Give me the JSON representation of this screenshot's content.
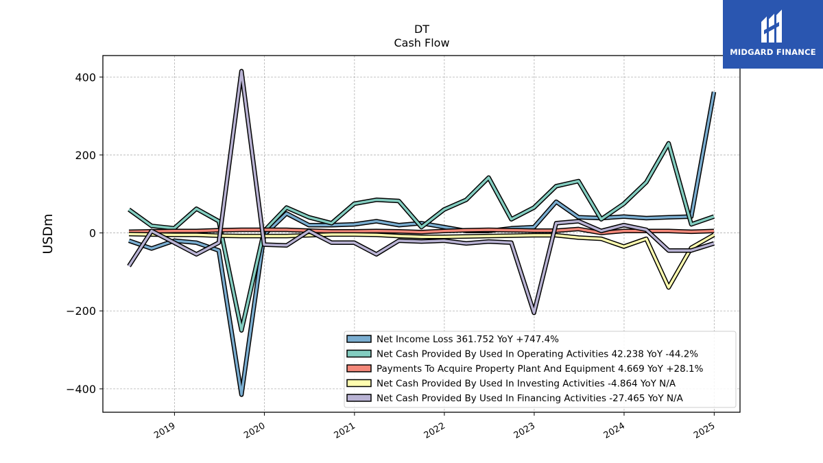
{
  "chart_data": {
    "type": "line",
    "title": "DT",
    "subtitle": "Cash Flow",
    "ylabel": "USDm",
    "xlabel": "",
    "ylim": [
      -460,
      455
    ],
    "yticks": [
      400,
      200,
      0,
      -200,
      -400
    ],
    "ytick_labels": [
      "400",
      "200",
      "0",
      "−200",
      "−400"
    ],
    "xtick_labels": [
      "2019",
      "2020",
      "2021",
      "2022",
      "2023",
      "2024",
      "2025"
    ],
    "grid": true,
    "legend_position": "lower-right",
    "x": [
      "2018-06-30",
      "2018-09-30",
      "2018-12-31",
      "2019-03-31",
      "2019-06-30",
      "2019-09-30",
      "2019-12-31",
      "2020-03-31",
      "2020-06-30",
      "2020-09-30",
      "2020-12-31",
      "2021-03-31",
      "2021-06-30",
      "2021-09-30",
      "2021-12-31",
      "2022-03-31",
      "2022-06-30",
      "2022-09-30",
      "2022-12-31",
      "2023-03-31",
      "2023-06-30",
      "2023-09-30",
      "2023-12-31",
      "2024-03-31",
      "2024-06-30",
      "2024-09-30",
      "2024-12-31"
    ],
    "series": [
      {
        "name": "Net Income Loss",
        "legend": "Net Income Loss  361.752 YoY +747.4%",
        "color": "#7aadd0",
        "values": [
          -20,
          -40,
          -20,
          -25,
          -45,
          -415,
          -5,
          50,
          20,
          20,
          22,
          30,
          20,
          25,
          15,
          5,
          5,
          12,
          15,
          80,
          40,
          38,
          42,
          38,
          40,
          42,
          362
        ]
      },
      {
        "name": "Net Cash Provided By Used In Operating Activities",
        "legend": "Net Cash Provided By Used In Operating Activities  42.238 YoY -44.2%",
        "color": "#83cdc0",
        "values": [
          60,
          18,
          12,
          62,
          30,
          -250,
          5,
          65,
          40,
          25,
          75,
          85,
          82,
          15,
          60,
          85,
          142,
          35,
          65,
          120,
          133,
          35,
          75,
          130,
          230,
          22,
          42
        ]
      },
      {
        "name": "Payments To Acquire Property Plant And Equipment",
        "legend": "Payments To Acquire Property Plant And Equipment  4.669 YoY +28.1%",
        "color": "#f4887a",
        "values": [
          3,
          4,
          5,
          5,
          7,
          8,
          8,
          8,
          6,
          4,
          4,
          5,
          4,
          2,
          5,
          7,
          8,
          7,
          6,
          6,
          10,
          0,
          5,
          5,
          5,
          3,
          5
        ]
      },
      {
        "name": "Net Cash Provided By Used In Investing Activities",
        "legend": "Net Cash Provided By Used In Investing Activities  -4.864 YoY N/A",
        "color": "#fffdb0",
        "values": [
          -3,
          -4,
          -5,
          -5,
          -7,
          -8,
          -8,
          -8,
          -6,
          -4,
          -4,
          -5,
          -8,
          -10,
          -10,
          -9,
          -8,
          -7,
          -6,
          -6,
          -12,
          -15,
          -35,
          -15,
          -140,
          -38,
          -5
        ]
      },
      {
        "name": "Net Cash Provided By Used In Financing Activities",
        "legend": "Net Cash Provided By Used In Financing Activities  -27.465 YoY N/A",
        "color": "#b9b3d4",
        "values": [
          -85,
          5,
          -25,
          -55,
          -25,
          415,
          -30,
          -32,
          5,
          -25,
          -25,
          -55,
          -20,
          -22,
          -20,
          -27,
          -22,
          -25,
          -205,
          25,
          30,
          5,
          20,
          8,
          -45,
          -45,
          -27
        ]
      }
    ]
  },
  "logo": {
    "text": "MIDGARD FINANCE"
  }
}
